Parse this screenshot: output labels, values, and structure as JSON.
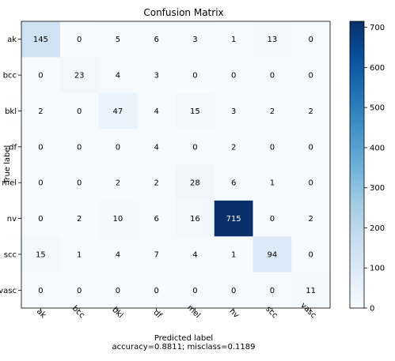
{
  "chart_data": {
    "type": "heatmap",
    "title": "Confusion Matrix",
    "xlabel": "Predicted label",
    "ylabel": "True label",
    "footer": "accuracy=0.8811; misclass=0.1189",
    "x_categories": [
      "ak",
      "bcc",
      "bkl",
      "df",
      "mel",
      "nv",
      "scc",
      "vasc"
    ],
    "y_categories": [
      "ak",
      "bcc",
      "bkl",
      "df",
      "mel",
      "nv",
      "scc",
      "vasc"
    ],
    "values": [
      [
        145,
        0,
        5,
        6,
        3,
        1,
        13,
        0
      ],
      [
        0,
        23,
        4,
        3,
        0,
        0,
        0,
        0
      ],
      [
        2,
        0,
        47,
        4,
        15,
        3,
        2,
        2
      ],
      [
        0,
        0,
        0,
        4,
        0,
        2,
        0,
        0
      ],
      [
        0,
        0,
        2,
        2,
        28,
        6,
        1,
        0
      ],
      [
        0,
        2,
        10,
        6,
        16,
        715,
        0,
        2
      ],
      [
        15,
        1,
        4,
        7,
        4,
        1,
        94,
        0
      ],
      [
        0,
        0,
        0,
        0,
        0,
        0,
        0,
        11
      ]
    ],
    "colormap": "Blues",
    "vmin": 0,
    "vmax": 715,
    "colorbar_ticks": [
      0,
      100,
      200,
      300,
      400,
      500,
      600,
      700
    ],
    "x_tick_rotation_deg": 45,
    "grid": false
  }
}
